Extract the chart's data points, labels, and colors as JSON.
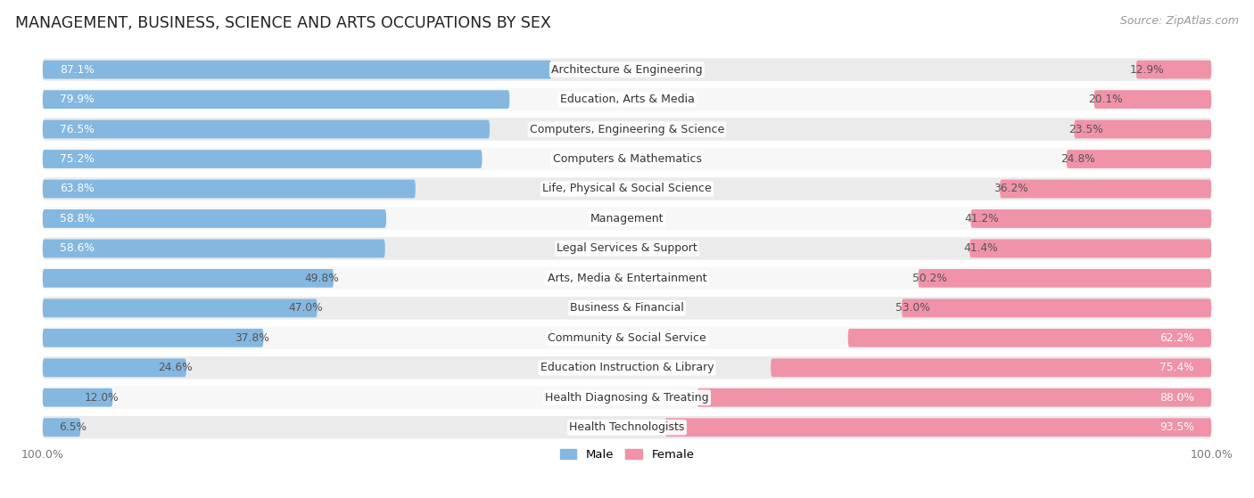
{
  "title": "MANAGEMENT, BUSINESS, SCIENCE AND ARTS OCCUPATIONS BY SEX",
  "source": "Source: ZipAtlas.com",
  "categories": [
    "Architecture & Engineering",
    "Education, Arts & Media",
    "Computers, Engineering & Science",
    "Computers & Mathematics",
    "Life, Physical & Social Science",
    "Management",
    "Legal Services & Support",
    "Arts, Media & Entertainment",
    "Business & Financial",
    "Community & Social Service",
    "Education Instruction & Library",
    "Health Diagnosing & Treating",
    "Health Technologists"
  ],
  "male": [
    87.1,
    79.9,
    76.5,
    75.2,
    63.8,
    58.8,
    58.6,
    49.8,
    47.0,
    37.8,
    24.6,
    12.0,
    6.5
  ],
  "female": [
    12.9,
    20.1,
    23.5,
    24.8,
    36.2,
    41.2,
    41.4,
    50.2,
    53.0,
    62.2,
    75.4,
    88.0,
    93.5
  ],
  "male_color": "#85b8e0",
  "female_color": "#f093a8",
  "row_bg_odd": "#ebebeb",
  "row_bg_even": "#f7f7f7",
  "bar_height": 0.62,
  "title_fontsize": 12.5,
  "label_fontsize": 9.0,
  "pct_fontsize": 8.8,
  "tick_fontsize": 9,
  "source_fontsize": 9
}
